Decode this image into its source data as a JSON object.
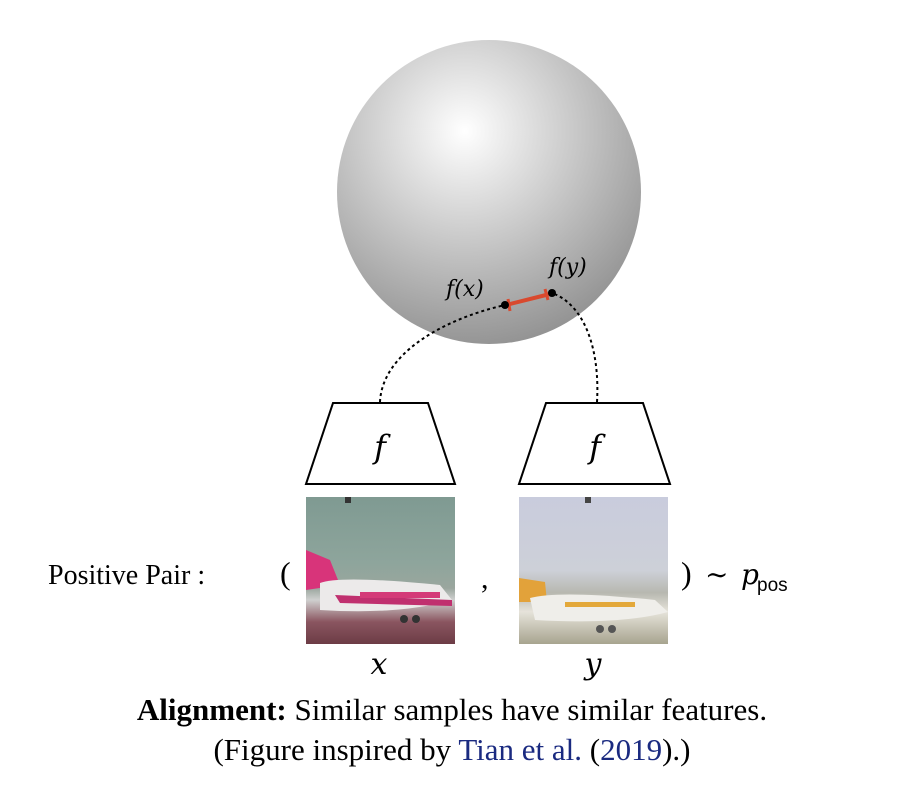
{
  "sphere": {
    "point_x_label": "f(x)",
    "point_y_label": "f(y)",
    "highlight_color": "#ffffff",
    "shade_color": "#8e8e8e",
    "link_color": "#d9492e"
  },
  "encoders": [
    {
      "symbol": "f"
    },
    {
      "symbol": "f"
    }
  ],
  "pair": {
    "label": "Positive Pair :",
    "open_paren": "(",
    "comma": ",",
    "close_paren": ")",
    "tilde": "∼",
    "dist_p": "p",
    "dist_sub": "pos",
    "image_x_label": "x",
    "image_y_label": "y"
  },
  "caption": {
    "bold": "Alignment:",
    "text": " Similar samples have similar features.",
    "line2_pre": "(Figure inspired by ",
    "line2_author": "Tian et al.",
    "line2_mid": " (",
    "line2_year": "2019",
    "line2_post": ").)"
  }
}
